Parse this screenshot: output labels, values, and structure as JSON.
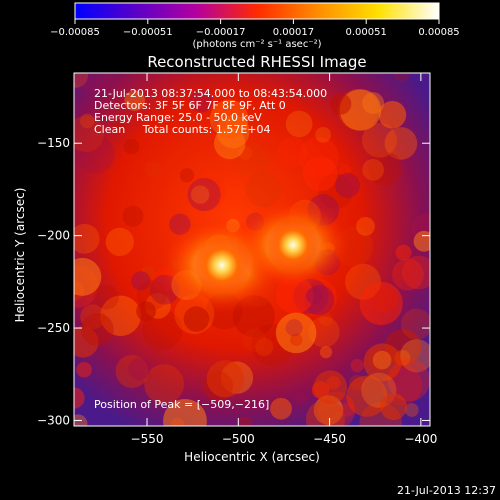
{
  "chart_data": {
    "type": "heatmap",
    "title": "Reconstructed RHESSI Image",
    "xlabel": "Heliocentric X (arcsec)",
    "ylabel": "Heliocentric Y (arcsec)",
    "xlim": [
      -590,
      -395
    ],
    "ylim": [
      -303,
      -112
    ],
    "x_ticks": [
      -550,
      -500,
      -450,
      -400
    ],
    "y_ticks": [
      -150,
      -200,
      -250,
      -300
    ],
    "x_tick_labels": [
      "−550",
      "−500",
      "−450",
      "−400"
    ],
    "y_tick_labels": [
      "−150",
      "−200",
      "−250",
      "−300"
    ],
    "colorbar": {
      "range": [
        -0.00085,
        0.00085
      ],
      "ticks": [
        -0.00085,
        -0.00051,
        -0.00017,
        0.00017,
        0.00051,
        0.00085
      ],
      "tick_labels": [
        "−0.00085",
        "−0.00051",
        "−0.00017",
        "0.00017",
        "0.00051",
        "0.00085"
      ],
      "unit_label": "(photons cm⁻² s⁻¹ asec⁻²)",
      "colors": [
        "#0000ff",
        "#5a00c8",
        "#b400a0",
        "#ff2a00",
        "#ff8c00",
        "#ffe000",
        "#ffffff"
      ]
    },
    "info_lines": [
      "21-Jul-2013 08:37:54.000 to 08:43:54.000",
      "Detectors: 3F 5F 6F 7F 8F 9F, Att 0",
      "Energy Range: 25.0 - 50.0 keV",
      "Clean     Total counts: 1.57E+04"
    ],
    "peak_label": "Position of Peak = [−509,−216]",
    "peak": [
      -509,
      -216
    ],
    "sources": [
      {
        "x": -509,
        "y": -216,
        "peak": 1.0
      },
      {
        "x": -470,
        "y": -205,
        "peak": 0.92
      }
    ],
    "grid": false
  },
  "footer_timestamp": "21-Jul-2013 12:37"
}
